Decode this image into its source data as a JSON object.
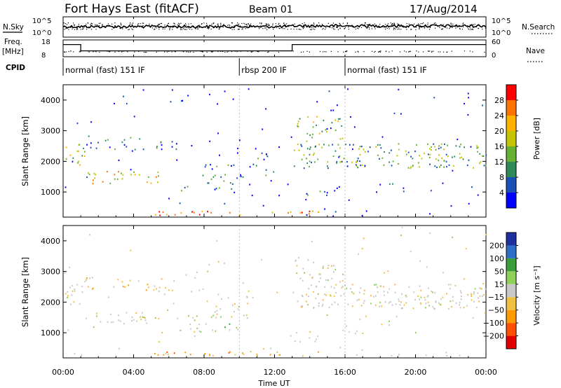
{
  "header": {
    "radar": "Fort Hays East (fitACF)",
    "beam": "Beam 01",
    "date": "17/Aug/2014"
  },
  "chart_data": {
    "type": "heatmap",
    "xlabel": "Time UT",
    "x_ticks": [
      "00:00",
      "04:00",
      "08:00",
      "12:00",
      "16:00",
      "20:00",
      "00:00"
    ],
    "x_range_hours": [
      0,
      24
    ],
    "noise": {
      "left_label": "N.Sky",
      "left_ticks": [
        "10^0",
        "10^5"
      ],
      "right_label": "N.Search",
      "right_ticks": [
        "10^0",
        "10^5"
      ]
    },
    "frequency": {
      "label": "Freq.",
      "unit": "[MHz]",
      "left_ticks": [
        "8",
        "18"
      ],
      "right_label": "Nave",
      "right_ticks": [
        "0",
        "60"
      ],
      "steps": [
        {
          "start_h": 0,
          "end_h": 1.0,
          "freq_mhz": 16
        },
        {
          "start_h": 1.0,
          "end_h": 13.0,
          "freq_mhz": 11
        },
        {
          "start_h": 13.0,
          "end_h": 24,
          "freq_mhz": 16
        }
      ]
    },
    "cpid": {
      "label": "CPID",
      "segments": [
        {
          "start_h": 0,
          "label": "normal (fast) 151 IF"
        },
        {
          "start_h": 10.0,
          "label": "rbsp 200 IF"
        },
        {
          "start_h": 16.0,
          "label": "normal (fast) 151 IF"
        }
      ]
    },
    "power": {
      "ylabel": "Slant Range [km]",
      "y_ticks": [
        1000,
        2000,
        3000,
        4000
      ],
      "y_range_km": [
        180,
        4500
      ],
      "colorbar_label": "Power [dB]",
      "colorbar_ticks": [
        "4",
        "8",
        "12",
        "16",
        "20",
        "24",
        "28"
      ],
      "colors": [
        "#0000ff",
        "#1a4fb5",
        "#2e8b57",
        "#66b032",
        "#c4c400",
        "#ffb300",
        "#ff7300",
        "#ff0000"
      ]
    },
    "velocity": {
      "ylabel": "Slant Range [km]",
      "y_ticks": [
        1000,
        2000,
        3000,
        4000
      ],
      "y_range_km": [
        180,
        4500
      ],
      "colorbar_label": "Velocity [m s⁻¹]",
      "colorbar_ticks": [
        "200",
        "100",
        "50",
        "15",
        "−15",
        "−50",
        "−100",
        "−200"
      ],
      "colors": [
        "#1e2fa0",
        "#2f6ec8",
        "#3a9e3a",
        "#8fd05a",
        "#c8c8c8",
        "#f0c040",
        "#ff9a00",
        "#ff5000",
        "#e00000"
      ]
    }
  }
}
